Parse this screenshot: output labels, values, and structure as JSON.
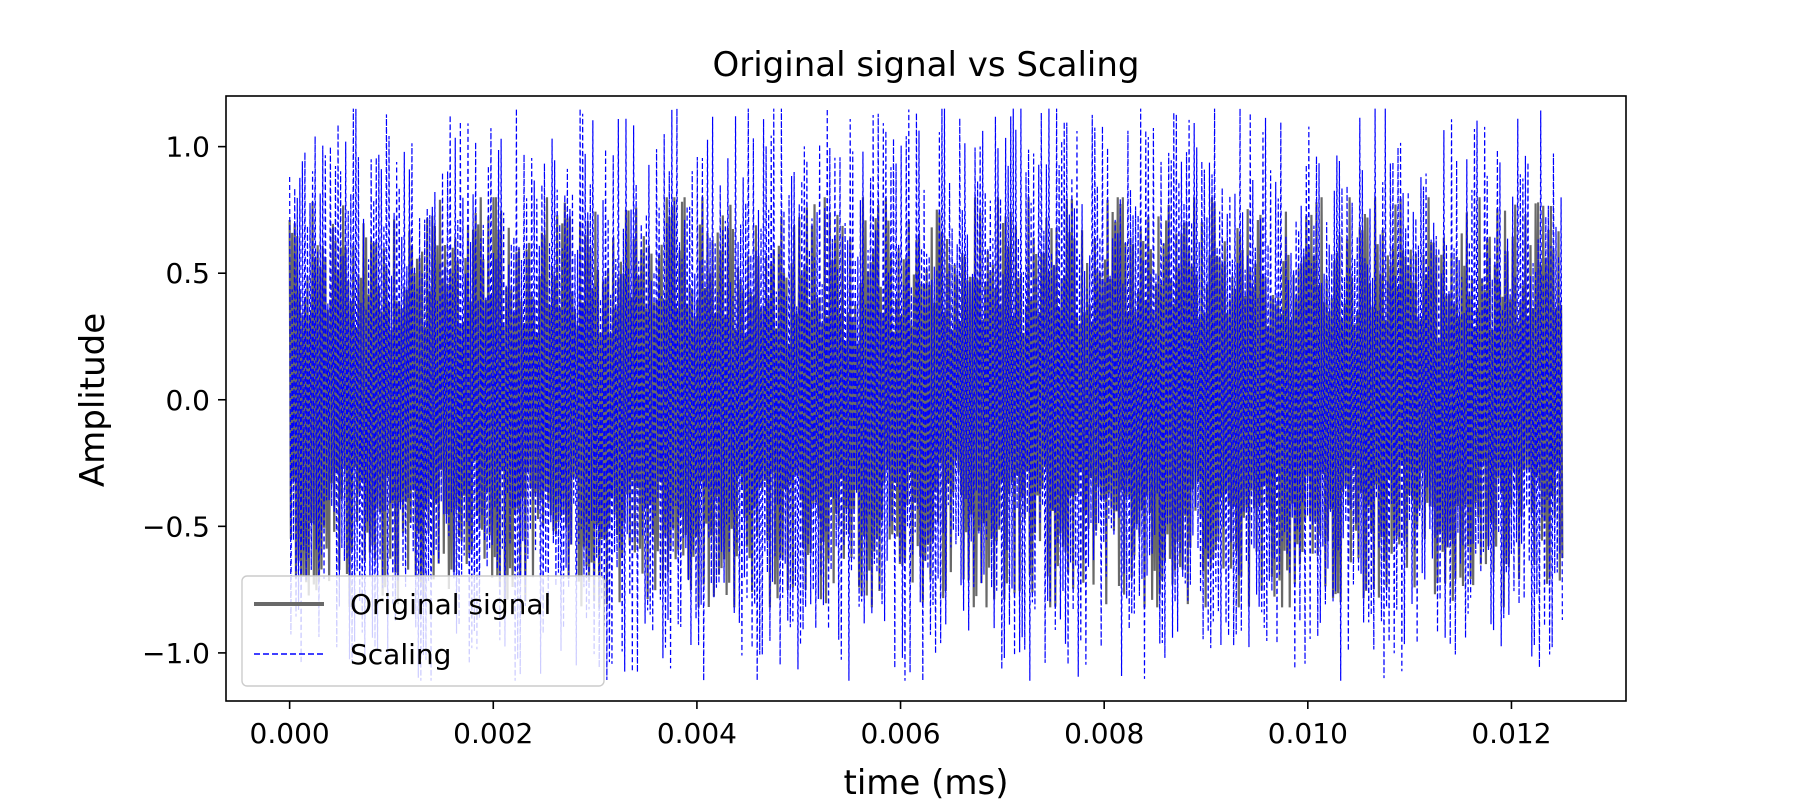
{
  "chart_data": {
    "type": "line",
    "title": "Original signal vs Scaling",
    "xlabel": "time (ms)",
    "ylabel": "Amplitude",
    "xlim": [
      -0.000625,
      0.013125
    ],
    "ylim": [
      -1.19,
      1.2
    ],
    "x_ticks": [
      0.0,
      0.002,
      0.004,
      0.006,
      0.008,
      0.01,
      0.012
    ],
    "x_tick_labels": [
      "0.000",
      "0.002",
      "0.004",
      "0.006",
      "0.008",
      "0.010",
      "0.012"
    ],
    "y_ticks": [
      -1.0,
      -0.5,
      0.0,
      0.5,
      1.0
    ],
    "y_tick_labels": [
      "−1.0",
      "−0.5",
      "0.0",
      "0.5",
      "1.0"
    ],
    "grid": false,
    "legend_position": "lower-left",
    "x_range": [
      0.0,
      0.0125
    ],
    "num_samples": 1000,
    "series": [
      {
        "name": "Original signal",
        "color": "#696969",
        "line_style": "solid",
        "amplitude_range": [
          -0.82,
          0.8
        ],
        "values": [
          0.71,
          -0.33,
          0.62,
          -0.7,
          0.55,
          -0.74,
          0.66,
          -0.58,
          0.75,
          -0.68,
          0.5,
          -0.76,
          0.69,
          -0.45,
          0.77,
          -0.62,
          0.58,
          -0.79,
          0.72,
          -0.51,
          0.64,
          -0.73,
          0.78,
          -0.6,
          0.52,
          -0.8,
          0.67,
          -0.55,
          0.74,
          -0.66
        ]
      },
      {
        "name": "Scaling",
        "color": "#0000ff",
        "line_style": "dashed",
        "amplitude_range": [
          -1.11,
          1.15
        ],
        "values": [
          0.88,
          -0.42,
          0.79,
          -0.9,
          0.71,
          -0.95,
          0.85,
          -0.74,
          1.11,
          -0.87,
          0.64,
          -0.98,
          0.9,
          -0.58,
          1.13,
          -0.8,
          0.75,
          -1.02,
          0.93,
          -0.66,
          0.83,
          -0.94,
          1.15,
          -0.77,
          0.67,
          -1.11,
          0.86,
          -0.71,
          0.95,
          -0.85
        ]
      }
    ]
  }
}
